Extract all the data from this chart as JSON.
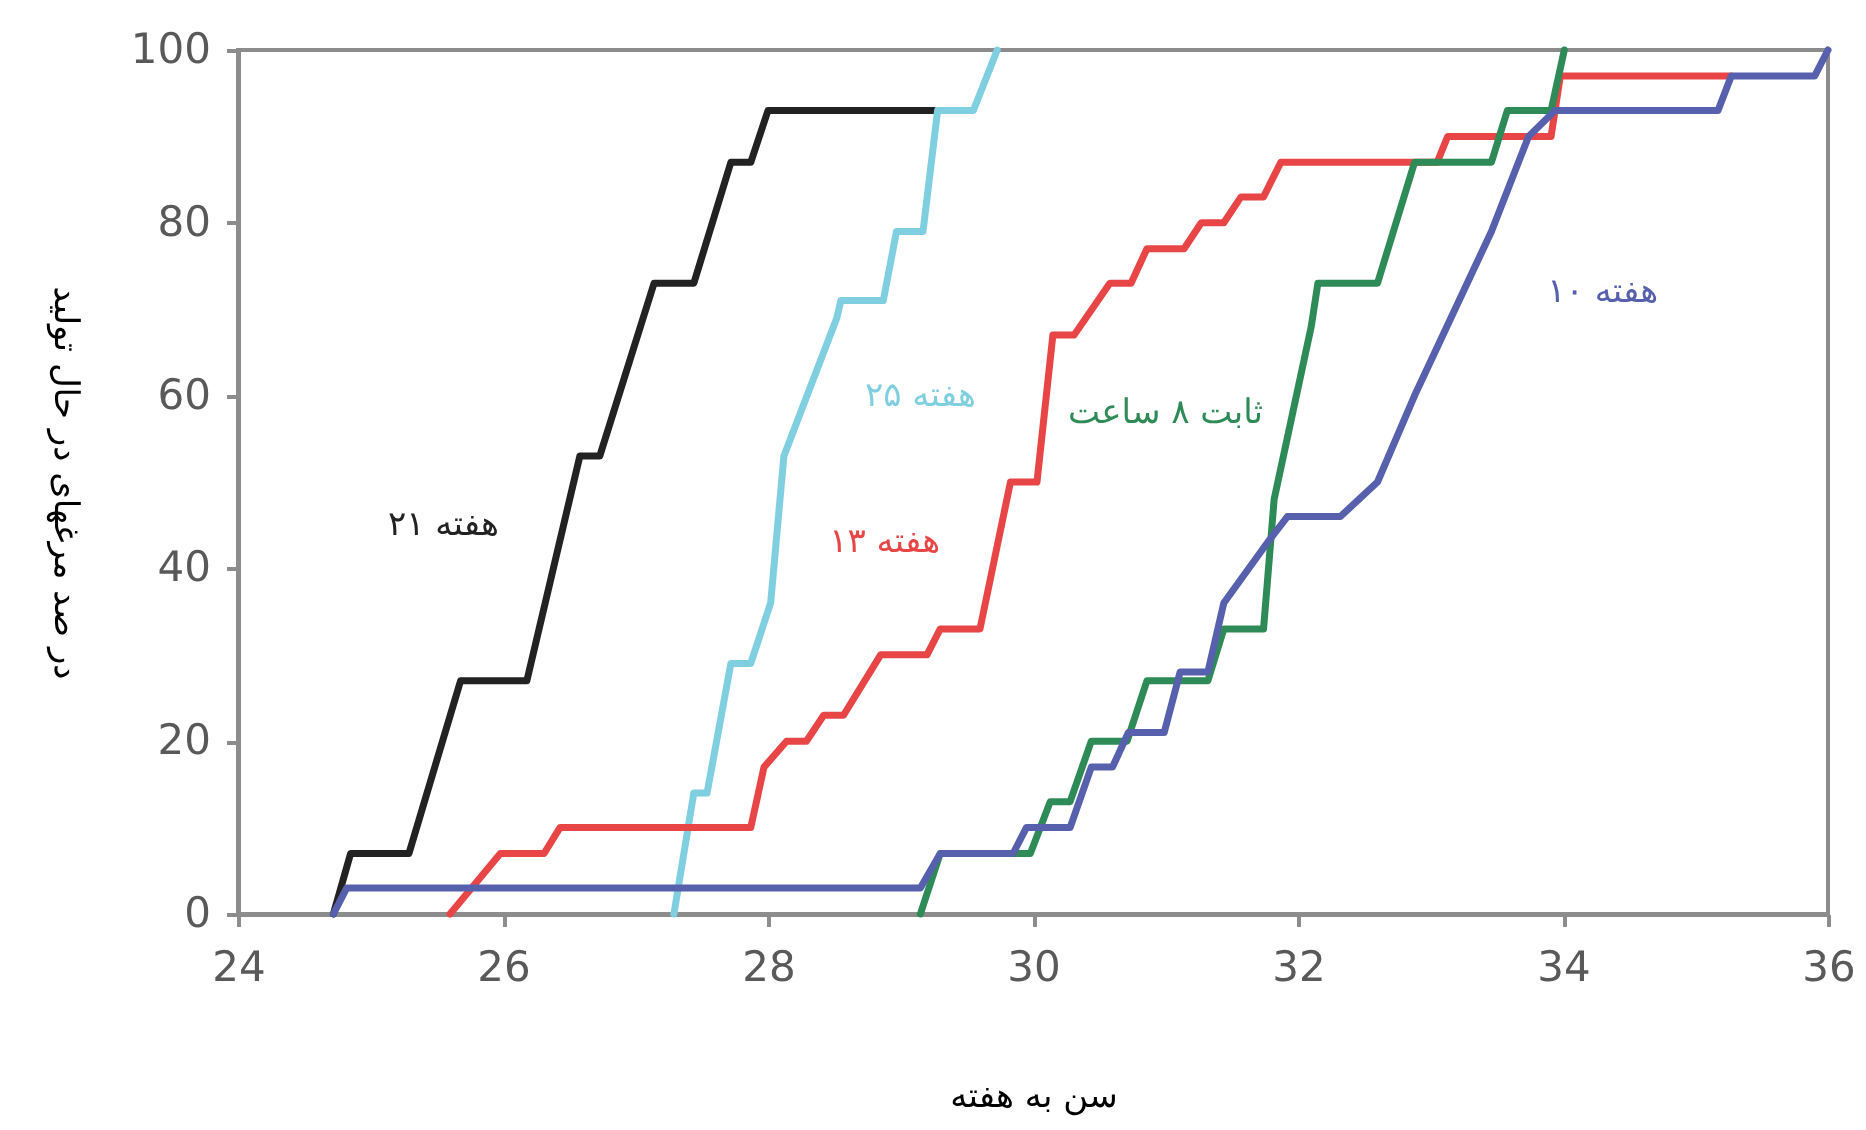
{
  "chart_data": {
    "type": "line",
    "xlabel": "سن به هفته",
    "ylabel": "در صد مرغهای در حال تولید",
    "xlim": [
      24,
      36
    ],
    "xticks": [
      24,
      26,
      28,
      30,
      32,
      34,
      36
    ],
    "ylim": [
      0,
      100
    ],
    "yticks": [
      0,
      20,
      40,
      60,
      80,
      100
    ],
    "grid": false,
    "legend": false,
    "line_style": "solid",
    "series": [
      {
        "name": "۲۱ هفته",
        "color": "#222222",
        "x": [
          24.72,
          24.85,
          25.29,
          25.68,
          26.18,
          26.58,
          26.73,
          27.14,
          27.44,
          27.72,
          27.87,
          28.0,
          29.25
        ],
        "values": [
          0,
          7,
          7,
          27,
          27,
          53,
          53,
          73,
          73,
          87,
          87,
          93,
          93
        ]
      },
      {
        "name": "۲۵ هفته",
        "color": "#7fcfe0",
        "x": [
          27.29,
          27.44,
          27.54,
          27.72,
          27.87,
          28.02,
          28.12,
          28.52,
          28.55,
          28.87,
          28.97,
          29.17,
          29.28,
          29.55,
          29.73
        ],
        "values": [
          0,
          14,
          14,
          29,
          29,
          36,
          53,
          69,
          71,
          71,
          79,
          79,
          93,
          93,
          100
        ]
      },
      {
        "name": "۱۳ هفته",
        "color": "#e84646",
        "x": [
          25.6,
          25.98,
          26.31,
          26.43,
          27.87,
          27.97,
          28.14,
          28.29,
          28.42,
          28.57,
          28.85,
          29.2,
          29.3,
          29.6,
          29.83,
          30.03,
          30.15,
          30.31,
          30.58,
          30.74,
          30.86,
          31.14,
          31.27,
          31.44,
          31.57,
          31.74,
          31.87,
          33.05,
          33.13,
          33.91,
          33.98,
          35.27
        ],
        "values": [
          0,
          7,
          7,
          10,
          10,
          17,
          20,
          20,
          23,
          23,
          30,
          30,
          33,
          33,
          50,
          50,
          67,
          67,
          73,
          73,
          77,
          77,
          80,
          80,
          83,
          83,
          87,
          87,
          90,
          90,
          97,
          97
        ]
      },
      {
        "name": "ثابت ۸ ساعت",
        "color": "#2e8b57",
        "x": [
          29.15,
          29.3,
          29.98,
          30.13,
          30.28,
          30.44,
          30.71,
          30.86,
          31.32,
          31.44,
          31.74,
          31.82,
          32.1,
          32.15,
          32.6,
          32.88,
          33.46,
          33.58,
          33.91,
          34.01
        ],
        "values": [
          0,
          7,
          7,
          13,
          13,
          20,
          20,
          27,
          27,
          33,
          33,
          48,
          68,
          73,
          73,
          87,
          87,
          93,
          93,
          100
        ]
      },
      {
        "name": "۱۰ هفته",
        "color": "#5660ac",
        "x": [
          24.72,
          24.82,
          29.15,
          29.3,
          29.85,
          29.95,
          30.28,
          30.44,
          30.6,
          30.72,
          30.99,
          31.11,
          31.32,
          31.44,
          31.77,
          31.92,
          32.32,
          32.6,
          32.88,
          33.46,
          33.74,
          33.94,
          35.17,
          35.27,
          35.9,
          36.0
        ],
        "values": [
          0,
          3,
          3,
          7,
          7,
          10,
          10,
          17,
          17,
          21,
          21,
          28,
          28,
          36,
          43,
          46,
          46,
          50,
          60,
          79,
          90,
          93,
          93,
          97,
          97,
          100
        ]
      }
    ]
  }
}
